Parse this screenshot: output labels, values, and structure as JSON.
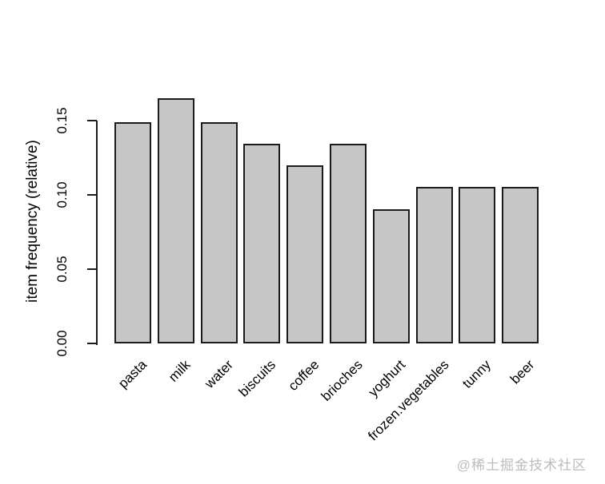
{
  "watermark": "@稀土掘金技术社区",
  "colors": {
    "background": "#ffffff",
    "bar_fill": "#c6c6c6",
    "bar_border": "#1b1b1b",
    "axis": "#1b1b1b",
    "text": "#000000",
    "watermark": "#bcbcbc"
  },
  "chart_data": {
    "type": "bar",
    "title": "",
    "xlabel": "",
    "ylabel": "item frequency (relative)",
    "categories": [
      "pasta",
      "milk",
      "water",
      "biscuits",
      "coffee",
      "brioches",
      "yoghurt",
      "frozen.vegetables",
      "tunny",
      "beer"
    ],
    "values": [
      0.149,
      0.165,
      0.149,
      0.134,
      0.12,
      0.134,
      0.09,
      0.105,
      0.105,
      0.105
    ],
    "yticks": [
      0.0,
      0.05,
      0.1,
      0.15
    ],
    "ytick_labels": [
      "0.00",
      "0.05",
      "0.10",
      "0.15"
    ],
    "ylim": [
      0,
      0.17
    ],
    "grid": false,
    "legend": null,
    "bar_orientation": "vertical",
    "x_label_rotation_deg": 45,
    "y_label_rotation_deg": 90
  }
}
